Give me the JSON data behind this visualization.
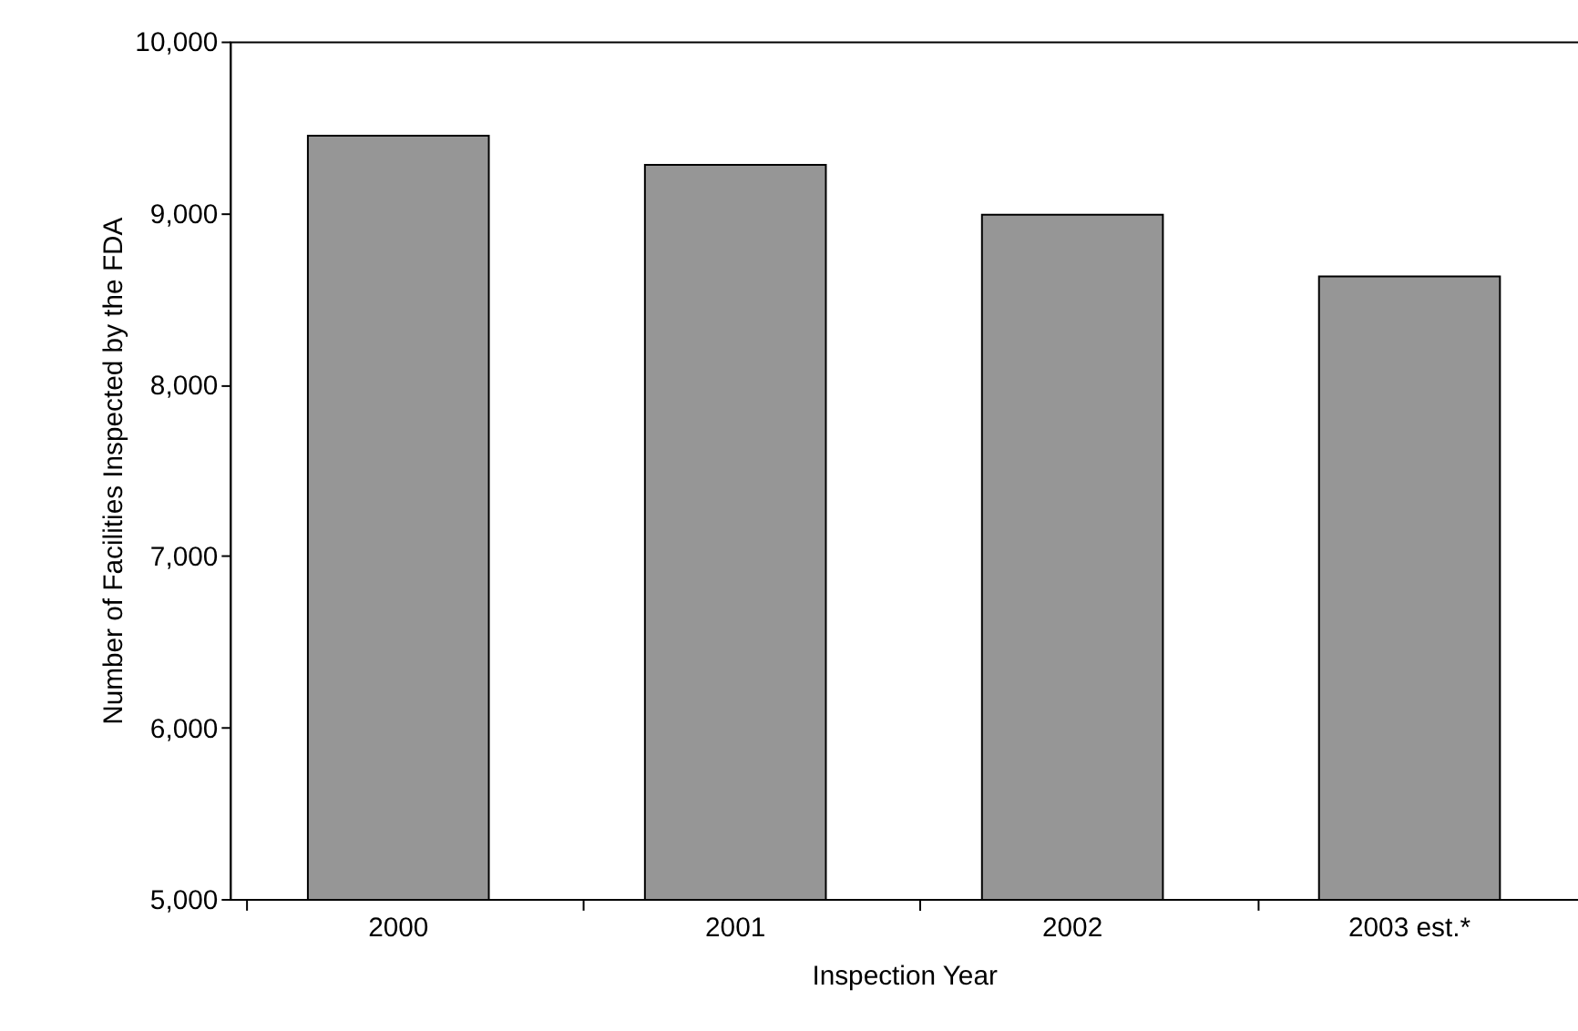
{
  "chart_data": {
    "type": "bar",
    "xlabel": "Inspection Year",
    "ylabel": "Number of Facilities Inspected by the FDA",
    "categories": [
      "2000",
      "2001",
      "2002",
      "2003 est.*"
    ],
    "values": [
      9450,
      9280,
      8990,
      8630
    ],
    "color": "#969696",
    "ylim": [
      5000,
      10000
    ],
    "yticks": [
      {
        "value": 5000,
        "label": "5,000"
      },
      {
        "value": 6000,
        "label": "6,000"
      },
      {
        "value": 7000,
        "label": "7,000"
      },
      {
        "value": 8000,
        "label": "8,000"
      },
      {
        "value": 9000,
        "label": "9,000"
      },
      {
        "value": 10000,
        "label": "10,000"
      }
    ],
    "grid": false
  }
}
